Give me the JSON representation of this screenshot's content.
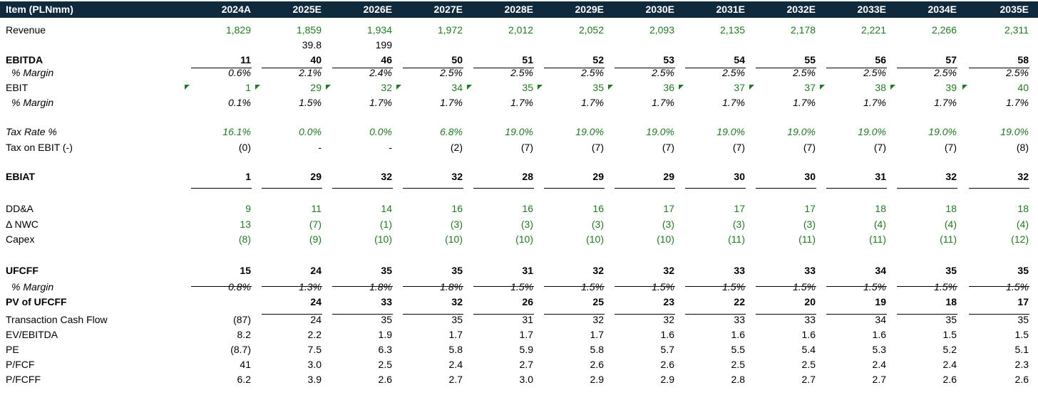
{
  "header": {
    "item": "Item (PLNmm)",
    "years": [
      "2024A",
      "2025E",
      "2026E",
      "2027E",
      "2028E",
      "2029E",
      "2030E",
      "2031E",
      "2032E",
      "2033E",
      "2034E",
      "2035E"
    ]
  },
  "stray_notes": [
    "39.8",
    "199"
  ],
  "rows": [
    {
      "label": "Revenue",
      "values": [
        "1,829",
        "1,859",
        "1,934",
        "1,972",
        "2,012",
        "2,052",
        "2,093",
        "2,135",
        "2,178",
        "2,221",
        "2,266",
        "2,311"
      ]
    },
    {
      "label": "EBITDA",
      "values": [
        "11",
        "40",
        "46",
        "50",
        "51",
        "52",
        "53",
        "54",
        "55",
        "56",
        "57",
        "58"
      ]
    },
    {
      "label": "% Margin",
      "values": [
        "0.6%",
        "2.1%",
        "2.4%",
        "2.5%",
        "2.5%",
        "2.5%",
        "2.5%",
        "2.5%",
        "2.5%",
        "2.5%",
        "2.5%",
        "2.5%"
      ]
    },
    {
      "label": "EBIT",
      "values": [
        "1",
        "29",
        "32",
        "34",
        "35",
        "35",
        "36",
        "37",
        "37",
        "38",
        "39",
        "40"
      ]
    },
    {
      "label": "% Margin",
      "values": [
        "0.1%",
        "1.5%",
        "1.7%",
        "1.7%",
        "1.7%",
        "1.7%",
        "1.7%",
        "1.7%",
        "1.7%",
        "1.7%",
        "1.7%",
        "1.7%"
      ]
    },
    {
      "label": "Tax Rate %",
      "values": [
        "16.1%",
        "0.0%",
        "0.0%",
        "6.8%",
        "19.0%",
        "19.0%",
        "19.0%",
        "19.0%",
        "19.0%",
        "19.0%",
        "19.0%",
        "19.0%"
      ]
    },
    {
      "label": "Tax on EBIT (-)",
      "values": [
        "(0)",
        "-",
        "-",
        "(2)",
        "(7)",
        "(7)",
        "(7)",
        "(7)",
        "(7)",
        "(7)",
        "(7)",
        "(8)"
      ]
    },
    {
      "label": "EBIAT",
      "values": [
        "1",
        "29",
        "32",
        "32",
        "28",
        "29",
        "29",
        "30",
        "30",
        "31",
        "32",
        "32"
      ]
    },
    {
      "label": "DD&A",
      "values": [
        "9",
        "11",
        "14",
        "16",
        "16",
        "16",
        "17",
        "17",
        "17",
        "18",
        "18",
        "18"
      ]
    },
    {
      "label": "Δ NWC",
      "values": [
        "13",
        "(7)",
        "(1)",
        "(3)",
        "(3)",
        "(3)",
        "(3)",
        "(3)",
        "(3)",
        "(4)",
        "(4)",
        "(4)"
      ]
    },
    {
      "label": "Capex",
      "values": [
        "(8)",
        "(9)",
        "(10)",
        "(10)",
        "(10)",
        "(10)",
        "(10)",
        "(11)",
        "(11)",
        "(11)",
        "(11)",
        "(12)"
      ]
    },
    {
      "label": "UFCFF",
      "values": [
        "15",
        "24",
        "35",
        "35",
        "31",
        "32",
        "32",
        "33",
        "33",
        "34",
        "35",
        "35"
      ]
    },
    {
      "label": "% Margin",
      "values": [
        "0.8%",
        "1.3%",
        "1.8%",
        "1.8%",
        "1.5%",
        "1.5%",
        "1.5%",
        "1.5%",
        "1.5%",
        "1.5%",
        "1.5%",
        "1.5%"
      ]
    },
    {
      "label": "PV of UFCFF",
      "values": [
        "",
        "24",
        "33",
        "32",
        "26",
        "25",
        "23",
        "22",
        "20",
        "19",
        "18",
        "17"
      ]
    },
    {
      "label": "Transaction Cash Flow",
      "values": [
        "(87)",
        "24",
        "35",
        "35",
        "31",
        "32",
        "32",
        "33",
        "33",
        "34",
        "35",
        "35"
      ]
    },
    {
      "label": "EV/EBITDA",
      "values": [
        "8.2",
        "2.2",
        "1.9",
        "1.7",
        "1.7",
        "1.7",
        "1.6",
        "1.6",
        "1.6",
        "1.6",
        "1.5",
        "1.5"
      ]
    },
    {
      "label": "PE",
      "values": [
        "(8.7)",
        "7.5",
        "6.3",
        "5.8",
        "5.9",
        "5.8",
        "5.7",
        "5.5",
        "5.4",
        "5.3",
        "5.2",
        "5.1"
      ]
    },
    {
      "label": "P/FCF",
      "values": [
        "41",
        "3.0",
        "2.5",
        "2.4",
        "2.7",
        "2.6",
        "2.6",
        "2.5",
        "2.5",
        "2.4",
        "2.4",
        "2.3"
      ]
    },
    {
      "label": "P/FCFF",
      "values": [
        "6.2",
        "3.9",
        "2.6",
        "2.7",
        "3.0",
        "2.9",
        "2.9",
        "2.8",
        "2.7",
        "2.7",
        "2.6",
        "2.6"
      ]
    }
  ],
  "colors": {
    "header_bg": "#0f2a3d",
    "input_green": "#1e7b1e"
  }
}
